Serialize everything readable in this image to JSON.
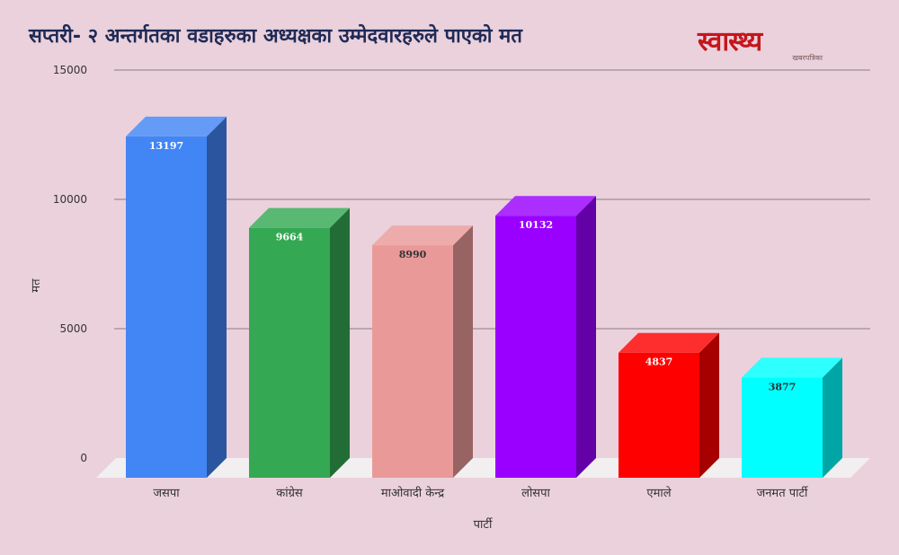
{
  "header": {
    "title": "सप्तरी- २ अन्तर्गतका वडाहरुका अध्यक्षका उम्मेदवारहरुले पाएको मत"
  },
  "logo": {
    "main": "स्वास्थ्य",
    "sub": "खबरपत्रिका"
  },
  "colors": {
    "background": "#ebd1dc",
    "title": "#1e2a56",
    "grid": "#8c7a84",
    "floor": "#f1efef",
    "logo": "#c4161c"
  },
  "chart_data": {
    "type": "bar",
    "title": "सप्तरी- २ अन्तर्गतका वडाहरुका अध्यक्षका उम्मेदवारहरुले पाएको मत",
    "xlabel": "पार्टी",
    "ylabel": "मत",
    "categories": [
      "जसपा",
      "कांग्रेस",
      "माओवादी केन्द्र",
      "लोसपा",
      "एमाले",
      "जनमत पार्टी"
    ],
    "values": [
      13197,
      9664,
      8990,
      10132,
      4837,
      3877
    ],
    "colors": [
      "#4285f4",
      "#34a853",
      "#ea9999",
      "#9900ff",
      "#ff0000",
      "#00ffff"
    ],
    "label_colors": [
      "#ffffff",
      "#ffffff",
      "#333333",
      "#ffffff",
      "#ffffff",
      "#333333"
    ],
    "yticks": [
      0,
      5000,
      10000,
      15000
    ],
    "ylim": [
      0,
      15000
    ],
    "grid": true,
    "style": "3d",
    "legend": "none"
  }
}
